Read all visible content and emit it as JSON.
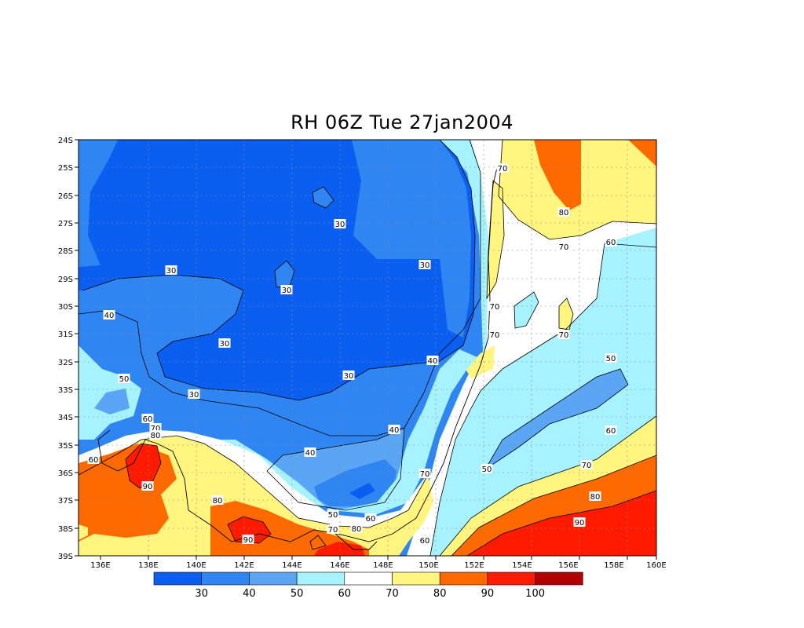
{
  "title": "RH 06Z Tue 27jan2004",
  "lat_labels": [
    "24S",
    "25S",
    "26S",
    "27S",
    "28S",
    "29S",
    "30S",
    "31S",
    "32S",
    "33S",
    "34S",
    "35S",
    "36S",
    "37S",
    "38S",
    "39S"
  ],
  "lon_labels": [
    "136E",
    "138E",
    "140E",
    "142E",
    "144E",
    "146E",
    "148E",
    "150E",
    "152E",
    "154E",
    "156E",
    "158E",
    "160E"
  ],
  "contour_labels": [
    {
      "text": "70"
    },
    {
      "text": "80"
    },
    {
      "text": "70"
    },
    {
      "text": "60"
    },
    {
      "text": "30"
    },
    {
      "text": "30"
    },
    {
      "text": "30"
    },
    {
      "text": "30"
    },
    {
      "text": "40"
    },
    {
      "text": "30"
    },
    {
      "text": "30"
    },
    {
      "text": "30"
    },
    {
      "text": "70"
    },
    {
      "text": "70"
    },
    {
      "text": "70"
    },
    {
      "text": "40"
    },
    {
      "text": "50"
    },
    {
      "text": "50"
    },
    {
      "text": "60"
    },
    {
      "text": "70"
    },
    {
      "text": "80"
    },
    {
      "text": "60"
    },
    {
      "text": "40"
    },
    {
      "text": "40"
    },
    {
      "text": "50"
    },
    {
      "text": "70"
    },
    {
      "text": "70"
    },
    {
      "text": "60"
    },
    {
      "text": "80"
    },
    {
      "text": "90"
    },
    {
      "text": "50"
    },
    {
      "text": "60"
    },
    {
      "text": "70"
    },
    {
      "text": "80"
    },
    {
      "text": "90"
    },
    {
      "text": "80"
    },
    {
      "text": "90"
    },
    {
      "text": "60"
    }
  ],
  "colorbar": {
    "colors": [
      "#0a5ff0",
      "#2f86f2",
      "#5aa6f5",
      "#a6f2ff",
      "#ffffff",
      "#fff57f",
      "#ff6a00",
      "#ff1a00",
      "#b20000"
    ],
    "labels": [
      "30",
      "40",
      "50",
      "60",
      "70",
      "80",
      "90",
      "100"
    ]
  }
}
